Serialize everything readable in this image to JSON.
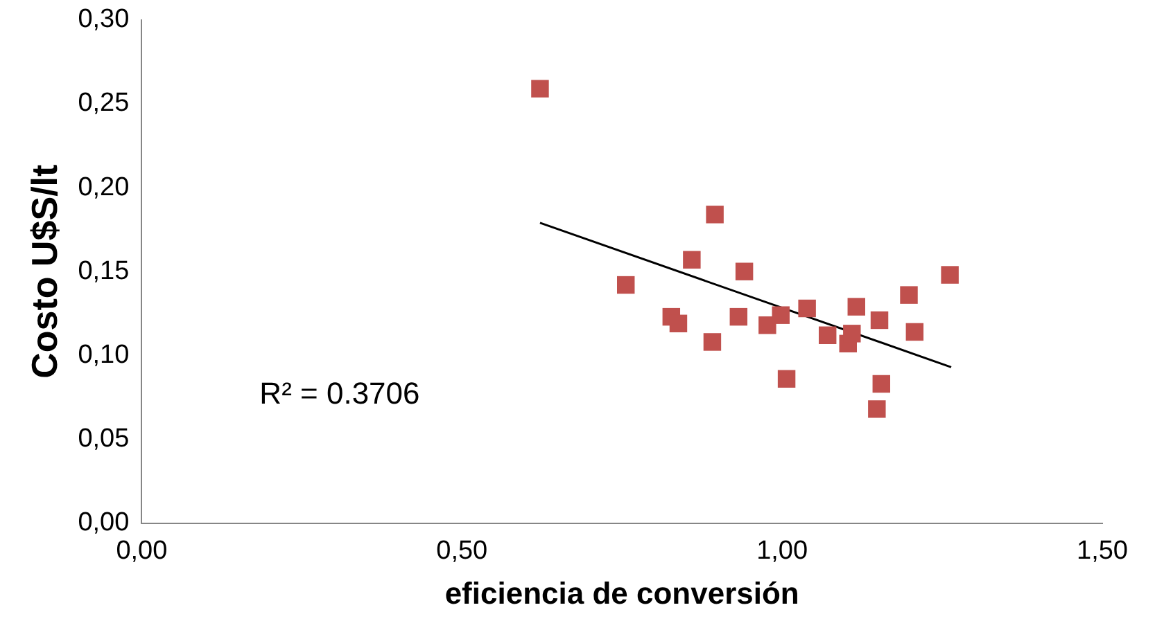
{
  "chart_data": {
    "type": "scatter",
    "xlabel": "eficiencia de conversión",
    "ylabel": "Costo U$S/lt",
    "xlim": [
      0,
      1.5
    ],
    "ylim": [
      0,
      0.3
    ],
    "xticks": [
      {
        "value": 0,
        "label": "0,00"
      },
      {
        "value": 0.5,
        "label": "0,50"
      },
      {
        "value": 1,
        "label": "1,00"
      },
      {
        "value": 1.5,
        "label": "1,50"
      }
    ],
    "yticks": [
      {
        "value": 0,
        "label": "0,00"
      },
      {
        "value": 0.05,
        "label": "0,05"
      },
      {
        "value": 0.1,
        "label": "0,10"
      },
      {
        "value": 0.15,
        "label": "0,15"
      },
      {
        "value": 0.2,
        "label": "0,20"
      },
      {
        "value": 0.25,
        "label": "0,25"
      },
      {
        "value": 0.3,
        "label": "0,30"
      }
    ],
    "grid": false,
    "legend": false,
    "marker": "square",
    "annotations": [
      "R² = 0.3706"
    ],
    "series": [
      {
        "color": "#c0504d",
        "x": [
          0.622,
          0.895,
          0.859,
          0.941,
          0.756,
          1.262,
          1.198,
          0.827,
          0.838,
          0.932,
          0.891,
          0.977,
          0.998,
          1.039,
          1.116,
          1.152,
          1.207,
          1.071,
          1.103,
          1.109,
          1.007,
          1.155,
          1.148
        ],
        "values": [
          0.259,
          0.184,
          0.157,
          0.15,
          0.142,
          0.148,
          0.136,
          0.123,
          0.119,
          0.123,
          0.108,
          0.118,
          0.124,
          0.128,
          0.129,
          0.121,
          0.114,
          0.112,
          0.107,
          0.113,
          0.086,
          0.083,
          0.068
        ]
      },
      {
        "type": "line",
        "color": "#000000",
        "marker": "none",
        "x": [
          0.622,
          1.264
        ],
        "values": [
          0.179,
          0.093
        ]
      }
    ]
  }
}
